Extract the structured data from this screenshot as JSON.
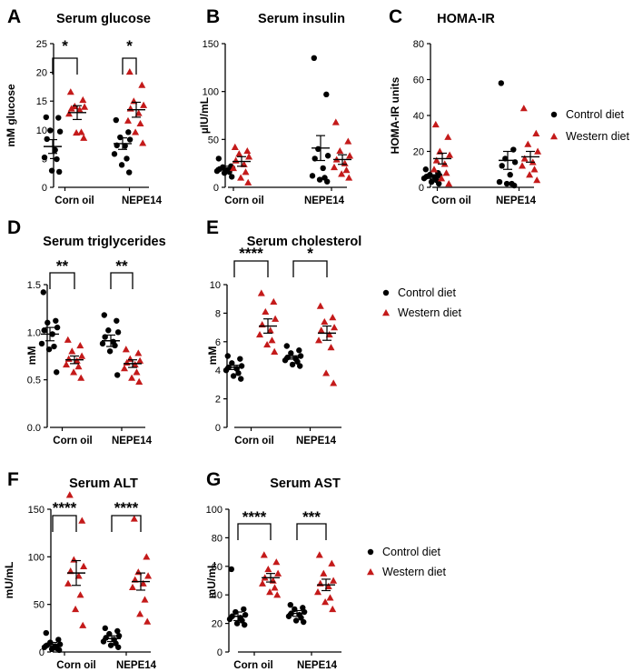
{
  "colors": {
    "control": "#000000",
    "western": "#c41a1a"
  },
  "legend_labels": [
    "Control diet",
    "Western diet"
  ],
  "chart_data": [
    {
      "letter": "A",
      "type": "scatter",
      "title": "Serum glucose",
      "ylabel": "mM glucose",
      "ylim": [
        0,
        25
      ],
      "yticks": [
        "0",
        "5",
        "10",
        "15",
        "20",
        "25"
      ],
      "categories": [
        "Corn oil",
        "NEPE14"
      ],
      "series": [
        {
          "name": "Control diet",
          "groups": [
            {
              "mean": 7.1,
              "sem": 1.2,
              "values": [
                12.2,
                12.1,
                9.9,
                9.7,
                8.4,
                6.5,
                5.2,
                4.9,
                2.9,
                2.7
              ]
            },
            {
              "mean": 7.6,
              "sem": 1.0,
              "values": [
                11.7,
                9.6,
                8.7,
                8.3,
                7.3,
                7.2,
                5.8,
                5.0,
                3.9,
                2.6
              ]
            }
          ]
        },
        {
          "name": "Western diet",
          "groups": [
            {
              "mean": 13.0,
              "sem": 1.2,
              "values": [
                16.6,
                15.2,
                14.1,
                14.0,
                13.7,
                13.5,
                12.8,
                9.6,
                9.5,
                8.6
              ]
            },
            {
              "mean": 13.5,
              "sem": 1.3,
              "values": [
                20.1,
                17.8,
                15.0,
                14.3,
                13.7,
                12.9,
                11.6,
                11.1,
                9.6,
                7.7
              ]
            }
          ]
        }
      ],
      "significance": [
        "*",
        "*"
      ]
    },
    {
      "letter": "B",
      "type": "scatter",
      "title": "Serum insulin",
      "ylabel": "µIU/mL",
      "ylim": [
        0,
        150
      ],
      "yticks": [
        "0",
        "50",
        "100",
        "150"
      ],
      "categories": [
        "Corn oil",
        "NEPE14"
      ],
      "series": [
        {
          "name": "Control diet",
          "groups": [
            {
              "mean": 20,
              "sem": 2,
              "values": [
                30,
                22,
                21,
                20,
                19,
                18,
                17,
                16,
                15,
                11
              ]
            },
            {
              "mean": 41,
              "sem": 13,
              "values": [
                135,
                97,
                40,
                33,
                30,
                20,
                12,
                10,
                8,
                6
              ]
            }
          ]
        },
        {
          "name": "Western diet",
          "groups": [
            {
              "mean": 27,
              "sem": 5,
              "values": [
                42,
                38,
                35,
                32,
                28,
                24,
                20,
                16,
                10,
                5
              ]
            },
            {
              "mean": 29,
              "sem": 5,
              "values": [
                68,
                48,
                38,
                33,
                29,
                25,
                21,
                18,
                14,
                10
              ]
            }
          ]
        }
      ],
      "significance": []
    },
    {
      "letter": "C",
      "type": "scatter",
      "title": "HOMA-IR",
      "ylabel": "HOMA-IR units",
      "ylim": [
        0,
        80
      ],
      "yticks": [
        "0",
        "20",
        "40",
        "60",
        "80"
      ],
      "categories": [
        "Corn oil",
        "NEPE14"
      ],
      "series": [
        {
          "name": "Control diet",
          "groups": [
            {
              "mean": 6,
              "sem": 1,
              "values": [
                10,
                8,
                7,
                6.5,
                6,
                5.5,
                5,
                4,
                3,
                2
              ]
            },
            {
              "mean": 15,
              "sem": 5,
              "values": [
                58,
                21,
                16,
                14,
                12,
                7,
                3,
                2,
                2,
                1
              ]
            }
          ]
        },
        {
          "name": "Western diet",
          "groups": [
            {
              "mean": 16,
              "sem": 3,
              "values": [
                35,
                28,
                20,
                18,
                15,
                13,
                10,
                8,
                5,
                2
              ]
            },
            {
              "mean": 17,
              "sem": 3,
              "values": [
                44,
                30,
                24,
                20,
                16,
                14,
                12,
                10,
                7,
                4
              ]
            }
          ]
        }
      ],
      "significance": []
    },
    {
      "letter": "D",
      "type": "scatter",
      "title": "Serum triglycerides",
      "ylabel": "mM",
      "ylim": [
        0,
        1.5
      ],
      "yticks": [
        "0.0",
        "0.5",
        "1.0",
        "1.5"
      ],
      "categories": [
        "Corn oil",
        "NEPE14"
      ],
      "series": [
        {
          "name": "Control diet",
          "groups": [
            {
              "mean": 0.98,
              "sem": 0.07,
              "values": [
                1.42,
                1.12,
                1.1,
                1.05,
                1.02,
                0.98,
                0.88,
                0.85,
                0.82,
                0.58
              ]
            },
            {
              "mean": 0.91,
              "sem": 0.06,
              "values": [
                1.18,
                1.12,
                1.02,
                1.0,
                0.95,
                0.9,
                0.88,
                0.86,
                0.8,
                0.55
              ]
            }
          ]
        },
        {
          "name": "Western diet",
          "groups": [
            {
              "mean": 0.71,
              "sem": 0.04,
              "values": [
                0.92,
                0.86,
                0.8,
                0.75,
                0.72,
                0.7,
                0.66,
                0.64,
                0.58,
                0.52
              ]
            },
            {
              "mean": 0.67,
              "sem": 0.04,
              "values": [
                0.82,
                0.78,
                0.72,
                0.7,
                0.68,
                0.66,
                0.62,
                0.58,
                0.52,
                0.48
              ]
            }
          ]
        }
      ],
      "significance": [
        "**",
        "**"
      ]
    },
    {
      "letter": "E",
      "type": "scatter",
      "title": "Serum cholesterol",
      "ylabel": "mM",
      "ylim": [
        0,
        10
      ],
      "yticks": [
        "0",
        "2",
        "4",
        "6",
        "8",
        "10"
      ],
      "categories": [
        "Corn oil",
        "NEPE14"
      ],
      "series": [
        {
          "name": "Control diet",
          "groups": [
            {
              "mean": 4.2,
              "sem": 0.15,
              "values": [
                5.0,
                4.8,
                4.5,
                4.3,
                4.2,
                4.1,
                4.0,
                3.8,
                3.6,
                3.4
              ]
            },
            {
              "mean": 4.9,
              "sem": 0.12,
              "values": [
                5.7,
                5.4,
                5.2,
                5.0,
                4.9,
                4.8,
                4.7,
                4.6,
                4.4,
                4.3
              ]
            }
          ]
        },
        {
          "name": "Western diet",
          "groups": [
            {
              "mean": 7.1,
              "sem": 0.5,
              "values": [
                9.4,
                8.8,
                8.1,
                7.6,
                7.2,
                6.8,
                6.5,
                6.1,
                5.8,
                5.3
              ]
            },
            {
              "mean": 6.6,
              "sem": 0.5,
              "values": [
                8.5,
                7.7,
                7.4,
                7.0,
                6.8,
                6.5,
                6.1,
                5.6,
                3.8,
                3.1
              ]
            }
          ]
        }
      ],
      "significance": [
        "****",
        "*"
      ]
    },
    {
      "letter": "F",
      "type": "scatter",
      "title": "Serum ALT",
      "ylabel": "mU/mL",
      "ylim": [
        0,
        150
      ],
      "yticks": [
        "0",
        "50",
        "100",
        "150"
      ],
      "categories": [
        "Corn oil",
        "NEPE14"
      ],
      "series": [
        {
          "name": "Control diet",
          "groups": [
            {
              "mean": 8,
              "sem": 2,
              "values": [
                20,
                13,
                10,
                8,
                7,
                6,
                5,
                4,
                3,
                2
              ]
            },
            {
              "mean": 14,
              "sem": 3,
              "values": [
                25,
                22,
                19,
                17,
                15,
                13,
                11,
                9,
                7,
                5
              ]
            }
          ]
        },
        {
          "name": "Western diet",
          "groups": [
            {
              "mean": 83,
              "sem": 13,
              "values": [
                165,
                138,
                97,
                90,
                85,
                80,
                72,
                60,
                45,
                28
              ]
            },
            {
              "mean": 74,
              "sem": 9,
              "values": [
                140,
                100,
                84,
                80,
                76,
                72,
                68,
                55,
                40,
                32
              ]
            }
          ]
        }
      ],
      "significance": [
        "****",
        "****"
      ]
    },
    {
      "letter": "G",
      "type": "scatter",
      "title": "Serum AST",
      "ylabel": "mU/mL",
      "ylim": [
        0,
        100
      ],
      "yticks": [
        "0",
        "20",
        "40",
        "60",
        "80",
        "100"
      ],
      "categories": [
        "Corn oil",
        "NEPE14"
      ],
      "series": [
        {
          "name": "Control diet",
          "groups": [
            {
              "mean": 25,
              "sem": 3,
              "values": [
                58,
                30,
                28,
                26,
                25,
                24,
                23,
                22,
                20,
                19
              ]
            },
            {
              "mean": 27,
              "sem": 2,
              "values": [
                33,
                31,
                30,
                28,
                27,
                26,
                25,
                24,
                22,
                21
              ]
            }
          ]
        },
        {
          "name": "Western diet",
          "groups": [
            {
              "mean": 52,
              "sem": 3,
              "values": [
                68,
                63,
                58,
                55,
                52,
                50,
                48,
                45,
                42,
                40
              ]
            },
            {
              "mean": 47,
              "sem": 4,
              "values": [
                68,
                62,
                55,
                50,
                48,
                46,
                42,
                38,
                35,
                30
              ]
            }
          ]
        }
      ],
      "significance": [
        "****",
        "***"
      ]
    }
  ]
}
